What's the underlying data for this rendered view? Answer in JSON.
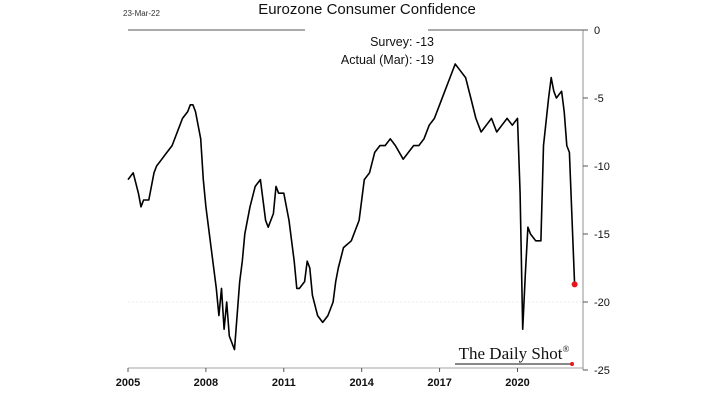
{
  "chart_data": {
    "type": "line",
    "title": "Eurozone Consumer Confidence",
    "date_label": "23-Mar-22",
    "annotations": {
      "survey": "Survey:  -13",
      "actual": "Actual (Mar):  -19"
    },
    "brand": "The Daily Shot",
    "brand_mark": "®",
    "xlim": [
      2005,
      2022.6
    ],
    "ylim": [
      -25,
      0
    ],
    "x_ticks": [
      2005,
      2008,
      2011,
      2014,
      2017,
      2020
    ],
    "x_tick_labels": [
      "2005",
      "2008",
      "2011",
      "2014",
      "2017",
      "2020"
    ],
    "y_ticks": [
      0,
      -5,
      -10,
      -15,
      -20,
      -25
    ],
    "y_tick_labels": [
      "0",
      "-5",
      "-10",
      "-15",
      "-20",
      "-25"
    ],
    "y_axis_side": "right",
    "grid": false,
    "series": [
      {
        "color": "#000000",
        "last_point_color": "#e8161c",
        "x": [
          2005.0,
          2005.2,
          2005.4,
          2005.5,
          2005.6,
          2005.8,
          2006.0,
          2006.1,
          2006.3,
          2006.5,
          2006.7,
          2006.9,
          2007.1,
          2007.3,
          2007.4,
          2007.5,
          2007.6,
          2007.8,
          2007.9,
          2008.0,
          2008.2,
          2008.4,
          2008.5,
          2008.6,
          2008.7,
          2008.8,
          2008.9,
          2009.0,
          2009.1,
          2009.2,
          2009.3,
          2009.4,
          2009.5,
          2009.7,
          2009.9,
          2010.1,
          2010.3,
          2010.4,
          2010.6,
          2010.7,
          2010.8,
          2011.0,
          2011.2,
          2011.4,
          2011.5,
          2011.6,
          2011.8,
          2011.9,
          2012.0,
          2012.1,
          2012.3,
          2012.5,
          2012.7,
          2012.9,
          2013.0,
          2013.1,
          2013.3,
          2013.6,
          2013.9,
          2014.1,
          2014.3,
          2014.5,
          2014.7,
          2014.9,
          2015.1,
          2015.3,
          2015.6,
          2015.8,
          2016.0,
          2016.2,
          2016.4,
          2016.6,
          2016.8,
          2017.0,
          2017.2,
          2017.4,
          2017.6,
          2017.8,
          2018.0,
          2018.2,
          2018.4,
          2018.6,
          2018.8,
          2019.0,
          2019.2,
          2019.4,
          2019.6,
          2019.8,
          2020.0,
          2020.1,
          2020.2,
          2020.3,
          2020.4,
          2020.5,
          2020.7,
          2020.9,
          2021.0,
          2021.2,
          2021.3,
          2021.4,
          2021.5,
          2021.7,
          2021.8,
          2021.9,
          2022.0,
          2022.2
        ],
        "y": [
          -11,
          -10.5,
          -12,
          -13,
          -12.5,
          -12.5,
          -10.5,
          -10,
          -9.5,
          -9,
          -8.5,
          -7.5,
          -6.5,
          -6,
          -5.5,
          -5.5,
          -6,
          -8,
          -11,
          -13,
          -16,
          -19,
          -21,
          -19,
          -22,
          -20,
          -22.5,
          -23,
          -23.5,
          -21,
          -18.5,
          -17,
          -15,
          -13,
          -11.5,
          -11,
          -14,
          -14.5,
          -13.5,
          -11.5,
          -12,
          -12,
          -14,
          -17,
          -19,
          -19,
          -18.5,
          -17,
          -17.5,
          -19.5,
          -21,
          -21.5,
          -21,
          -20,
          -18.5,
          -17.5,
          -16,
          -15.5,
          -14,
          -11,
          -10.5,
          -9,
          -8.5,
          -8.5,
          -8,
          -8.5,
          -9.5,
          -9,
          -8.5,
          -8.5,
          -8,
          -7,
          -6.5,
          -5.5,
          -4.5,
          -3.5,
          -2.5,
          -3,
          -3.5,
          -5,
          -6.5,
          -7.5,
          -7,
          -6.5,
          -7.5,
          -7,
          -6.5,
          -7,
          -6.5,
          -12,
          -22,
          -18,
          -14.5,
          -15,
          -15.5,
          -15.5,
          -8.5,
          -5,
          -3.5,
          -4.5,
          -5,
          -4.5,
          -6,
          -8.5,
          -9,
          -18.7
        ]
      }
    ]
  }
}
